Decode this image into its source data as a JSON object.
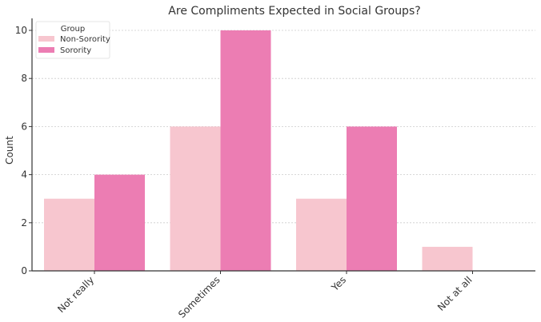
{
  "chart_data": {
    "type": "bar",
    "title": "Are Compliments Expected in Social Groups?",
    "xlabel": "",
    "ylabel": "Count",
    "categories": [
      "Not really",
      "Sometimes",
      "Yes",
      "Not at all"
    ],
    "series": [
      {
        "name": "Non-Sorority",
        "values": [
          3,
          6,
          3,
          1
        ],
        "color": "#f7c6cf"
      },
      {
        "name": "Sorority",
        "values": [
          4,
          10,
          6,
          0
        ],
        "color": "#ec7db3"
      }
    ],
    "ylim": [
      0,
      10.5
    ],
    "yticks": [
      0,
      2,
      4,
      6,
      8,
      10
    ],
    "grid": true,
    "legend": {
      "title": "Group",
      "position": "top-left"
    }
  }
}
